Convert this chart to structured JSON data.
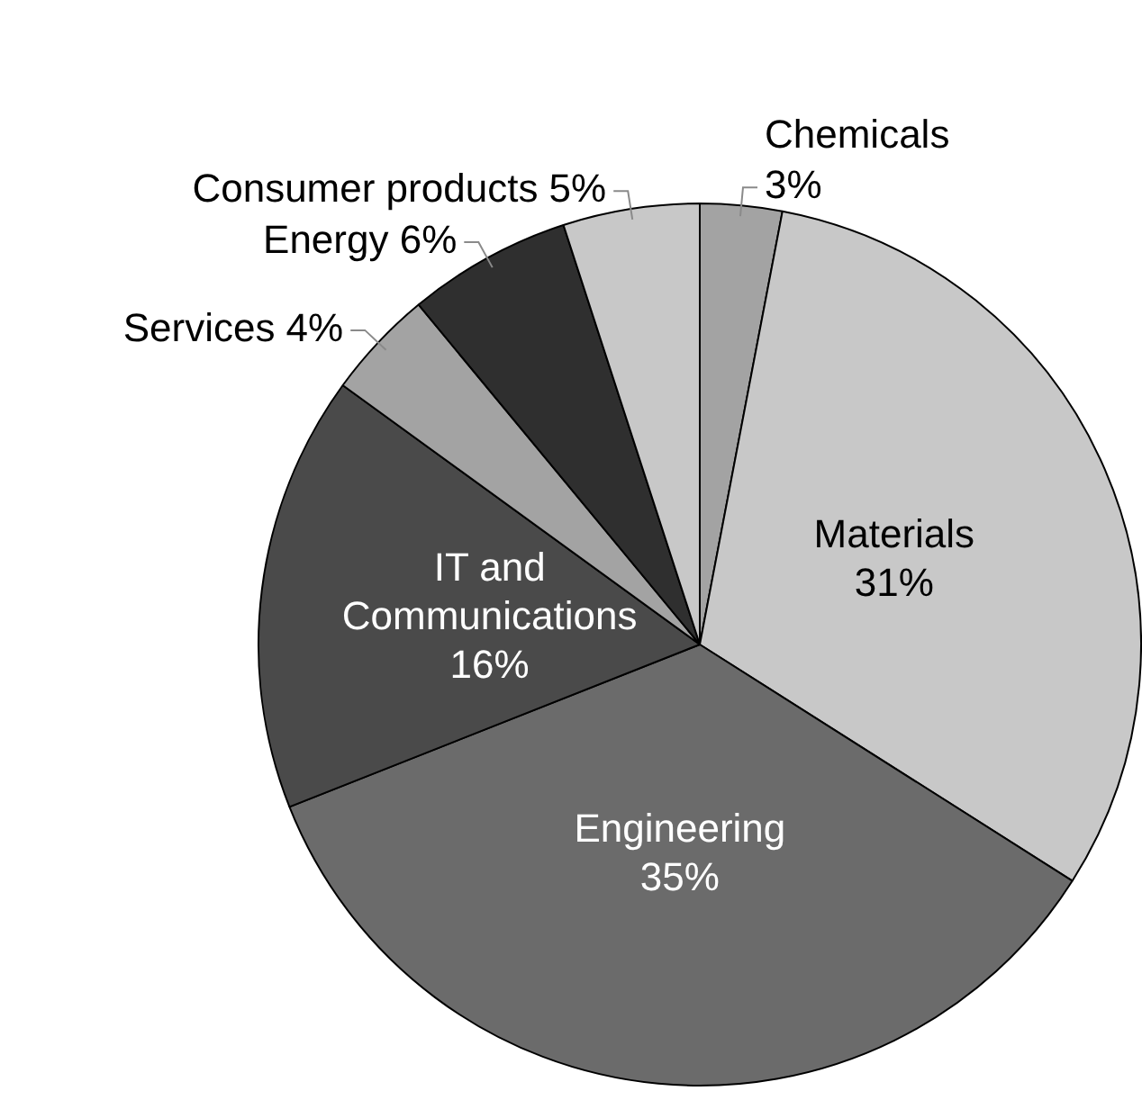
{
  "chart_data": {
    "type": "pie",
    "categories": [
      "Chemicals",
      "Materials",
      "Engineering",
      "IT and Communications",
      "Services",
      "Energy",
      "Consumer products"
    ],
    "values": [
      3,
      31,
      35,
      16,
      4,
      6,
      5
    ],
    "value_labels": [
      "3%",
      "31%",
      "35%",
      "16%",
      "4%",
      "6%",
      "5%"
    ],
    "colors": [
      "#a3a3a3",
      "#c8c8c8",
      "#6b6b6b",
      "#4a4a4a",
      "#a3a3a3",
      "#2f2f2f",
      "#c8c8c8"
    ],
    "legend": false
  }
}
